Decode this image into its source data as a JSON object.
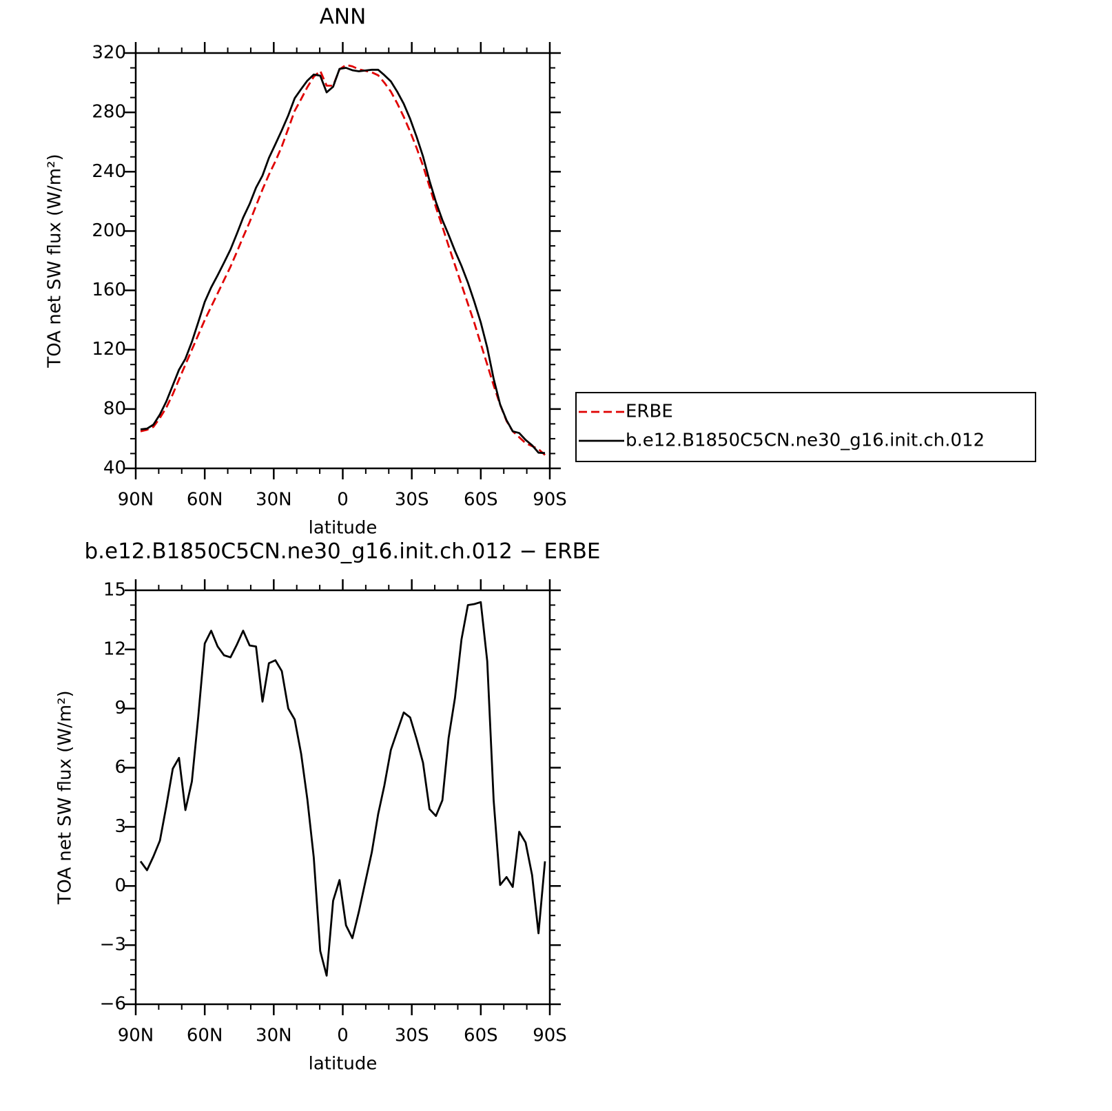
{
  "chart_data": [
    {
      "type": "line",
      "title": "ANN",
      "xlabel": "latitude",
      "ylabel": "TOA net SW flux (W/m²)",
      "x": [
        87.9,
        85.1,
        82.3,
        79.5,
        76.7,
        73.9,
        71.2,
        68.4,
        65.6,
        62.8,
        60.0,
        57.2,
        54.4,
        51.6,
        48.8,
        46.0,
        43.3,
        40.5,
        37.7,
        34.9,
        32.1,
        29.3,
        26.5,
        23.7,
        20.9,
        18.1,
        15.4,
        12.6,
        9.8,
        7.0,
        4.2,
        1.4,
        -1.4,
        -4.2,
        -7.0,
        -9.8,
        -12.6,
        -15.4,
        -18.1,
        -20.9,
        -23.7,
        -26.5,
        -29.3,
        -32.1,
        -34.9,
        -37.7,
        -40.5,
        -43.3,
        -46.0,
        -48.8,
        -51.6,
        -54.4,
        -57.2,
        -60.0,
        -62.8,
        -65.6,
        -68.4,
        -71.2,
        -73.9,
        -76.7,
        -79.5,
        -82.3,
        -85.1,
        -87.9
      ],
      "xlim": [
        90,
        -90
      ],
      "xticks": [
        {
          "value": 90,
          "label": "90N"
        },
        {
          "value": 60,
          "label": "60N"
        },
        {
          "value": 30,
          "label": "30N"
        },
        0,
        {
          "value": -30,
          "label": "30S"
        },
        {
          "value": -60,
          "label": "60S"
        },
        {
          "value": -90,
          "label": "90S"
        }
      ],
      "ylim": [
        40,
        320
      ],
      "yticks": [
        40,
        80,
        120,
        160,
        200,
        240,
        280,
        320
      ],
      "legend": "right",
      "series": [
        {
          "name": "ERBE",
          "color": "#e00000",
          "dash": true,
          "values": [
            65,
            66,
            68,
            74,
            81,
            90,
            100,
            110,
            120,
            130,
            140,
            149,
            158,
            167,
            176,
            186,
            196,
            206,
            217,
            228,
            238,
            247,
            257,
            269,
            281,
            289,
            297,
            304,
            308,
            298,
            298,
            309,
            312,
            311,
            309,
            308,
            307,
            305,
            300,
            294,
            286,
            277,
            267,
            256,
            244,
            230,
            216,
            203,
            190,
            177,
            164,
            151,
            138,
            124,
            110,
            96,
            83,
            72,
            65,
            61,
            57,
            55,
            53,
            49
          ]
        },
        {
          "name": "b.e12.B1850C5CN.ne30_g16.init.ch.012",
          "color": "#000000",
          "dash": false,
          "values": [
            66.3,
            66.8,
            69.5,
            76.3,
            85.1,
            96.0,
            106.5,
            113.9,
            125.3,
            138.6,
            152.3,
            162.0,
            170.2,
            178.7,
            187.6,
            198.3,
            209.0,
            218.2,
            229.2,
            237.4,
            249.3,
            258.5,
            267.9,
            278.0,
            289.5,
            295.7,
            301.4,
            305.5,
            304.7,
            293.5,
            297.3,
            309.3,
            310.0,
            308.4,
            307.7,
            308.2,
            308.7,
            308.7,
            305.1,
            300.9,
            293.9,
            285.8,
            275.6,
            263.5,
            250.3,
            233.9,
            219.6,
            207.4,
            197.5,
            186.6,
            176.5,
            165.3,
            152.3,
            138.4,
            121.4,
            100.4,
            83.1,
            72.5,
            65.0,
            63.8,
            59.2,
            55.6,
            50.6,
            50.3
          ]
        }
      ]
    },
    {
      "type": "line",
      "title": "b.e12.B1850C5CN.ne30_g16.init.ch.012 − ERBE",
      "xlabel": "latitude",
      "ylabel": "TOA net SW flux (W/m²)",
      "x": [
        87.9,
        85.1,
        82.3,
        79.5,
        76.7,
        73.9,
        71.2,
        68.4,
        65.6,
        62.8,
        60.0,
        57.2,
        54.4,
        51.6,
        48.8,
        46.0,
        43.3,
        40.5,
        37.7,
        34.9,
        32.1,
        29.3,
        26.5,
        23.7,
        20.9,
        18.1,
        15.4,
        12.6,
        9.8,
        7.0,
        4.2,
        1.4,
        -1.4,
        -4.2,
        -7.0,
        -9.8,
        -12.6,
        -15.4,
        -18.1,
        -20.9,
        -23.7,
        -26.5,
        -29.3,
        -32.1,
        -34.9,
        -37.7,
        -40.5,
        -43.3,
        -46.0,
        -48.8,
        -51.6,
        -54.4,
        -57.2,
        -60.0,
        -62.8,
        -65.6,
        -68.4,
        -71.2,
        -73.9,
        -76.7,
        -79.5,
        -82.3,
        -85.1,
        -87.9
      ],
      "xlim": [
        90,
        -90
      ],
      "xticks": [
        {
          "value": 90,
          "label": "90N"
        },
        {
          "value": 60,
          "label": "60N"
        },
        {
          "value": 30,
          "label": "30N"
        },
        0,
        {
          "value": -30,
          "label": "30S"
        },
        {
          "value": -60,
          "label": "60S"
        },
        {
          "value": -90,
          "label": "90S"
        }
      ],
      "ylim": [
        -6,
        15
      ],
      "yticks": [
        {
          "value": -6,
          "label": "−6"
        },
        {
          "value": -3,
          "label": "−3"
        },
        0,
        3,
        6,
        9,
        12,
        15
      ],
      "color": "#000000",
      "values": [
        1.25,
        0.8,
        1.5,
        2.3,
        4.05,
        5.95,
        6.5,
        3.85,
        5.3,
        8.6,
        12.3,
        12.95,
        12.15,
        11.7,
        11.6,
        12.25,
        12.95,
        12.2,
        12.15,
        9.35,
        11.3,
        11.45,
        10.9,
        9.0,
        8.45,
        6.7,
        4.4,
        1.45,
        -3.3,
        -4.55,
        -0.75,
        0.3,
        -2.0,
        -2.65,
        -1.3,
        0.2,
        1.7,
        3.65,
        5.1,
        6.9,
        7.85,
        8.8,
        8.55,
        7.45,
        6.25,
        3.9,
        3.55,
        4.35,
        7.5,
        9.55,
        12.5,
        14.25,
        14.3,
        14.4,
        11.4,
        4.35,
        0.05,
        0.45,
        -0.05,
        2.75,
        2.2,
        0.55,
        -2.4,
        1.25
      ]
    }
  ]
}
